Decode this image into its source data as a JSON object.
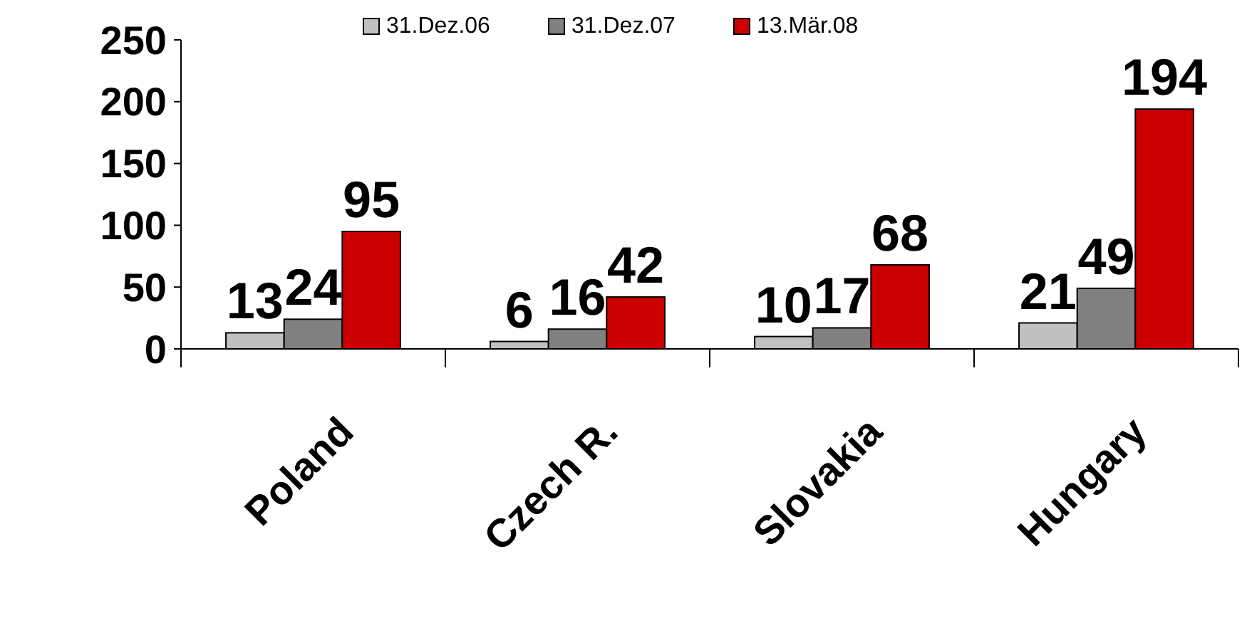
{
  "chart_data": {
    "type": "bar",
    "categories": [
      "Poland",
      "Czech R.",
      "Slovakia",
      "Hungary"
    ],
    "series": [
      {
        "name": "31.Dez.06",
        "color": "#c0c0c0",
        "values": [
          13,
          6,
          10,
          21
        ]
      },
      {
        "name": "31.Dez.07",
        "color": "#808080",
        "values": [
          24,
          16,
          17,
          49
        ]
      },
      {
        "name": "13.Mär.08",
        "color": "#cc0000",
        "values": [
          95,
          42,
          68,
          194
        ]
      }
    ],
    "ylim": [
      0,
      250
    ],
    "yticks": [
      0,
      50,
      100,
      150,
      200,
      250
    ],
    "data_labels": true,
    "legend": "top",
    "grid": false
  }
}
